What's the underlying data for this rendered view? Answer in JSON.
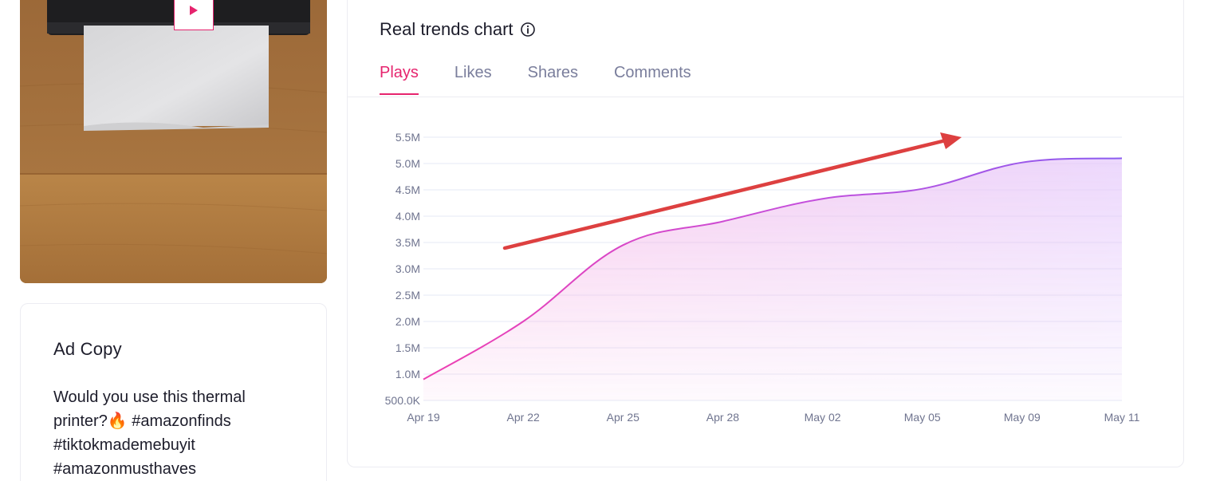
{
  "ad_copy": {
    "title": "Ad Copy",
    "lines": [
      "Would you use this thermal",
      "printer?🔥  #amazonfinds",
      "#tiktokmademebuyit",
      "#amazonmusthaves"
    ]
  },
  "trends": {
    "title": "Real trends chart",
    "info_icon": "info-circle-icon",
    "tabs": [
      {
        "label": "Plays",
        "active": true
      },
      {
        "label": "Likes",
        "active": false
      },
      {
        "label": "Shares",
        "active": false
      },
      {
        "label": "Comments",
        "active": false
      }
    ]
  },
  "colors": {
    "accent": "#e6246e",
    "line_start": "#ee3fb1",
    "line_end": "#8a5cf0",
    "annotation_arrow": "#dd4040"
  },
  "chart_data": {
    "type": "area",
    "x": [
      "Apr 19",
      "Apr 22",
      "Apr 25",
      "Apr 28",
      "May 02",
      "May 05",
      "May 09",
      "May 11"
    ],
    "values": [
      900000,
      2000000,
      3450000,
      3900000,
      4330000,
      4520000,
      5020000,
      5100000
    ],
    "yticks": [
      {
        "value": 500000,
        "label": "500.0K"
      },
      {
        "value": 1000000,
        "label": "1.0M"
      },
      {
        "value": 1500000,
        "label": "1.5M"
      },
      {
        "value": 2000000,
        "label": "2.0M"
      },
      {
        "value": 2500000,
        "label": "2.5M"
      },
      {
        "value": 3000000,
        "label": "3.0M"
      },
      {
        "value": 3500000,
        "label": "3.5M"
      },
      {
        "value": 4000000,
        "label": "4.0M"
      },
      {
        "value": 4500000,
        "label": "4.5M"
      },
      {
        "value": 5000000,
        "label": "5.0M"
      },
      {
        "value": 5500000,
        "label": "5.5M"
      }
    ],
    "ylim": [
      500000,
      5500000
    ],
    "grid": true,
    "annotation": "upward-trend-arrow"
  }
}
